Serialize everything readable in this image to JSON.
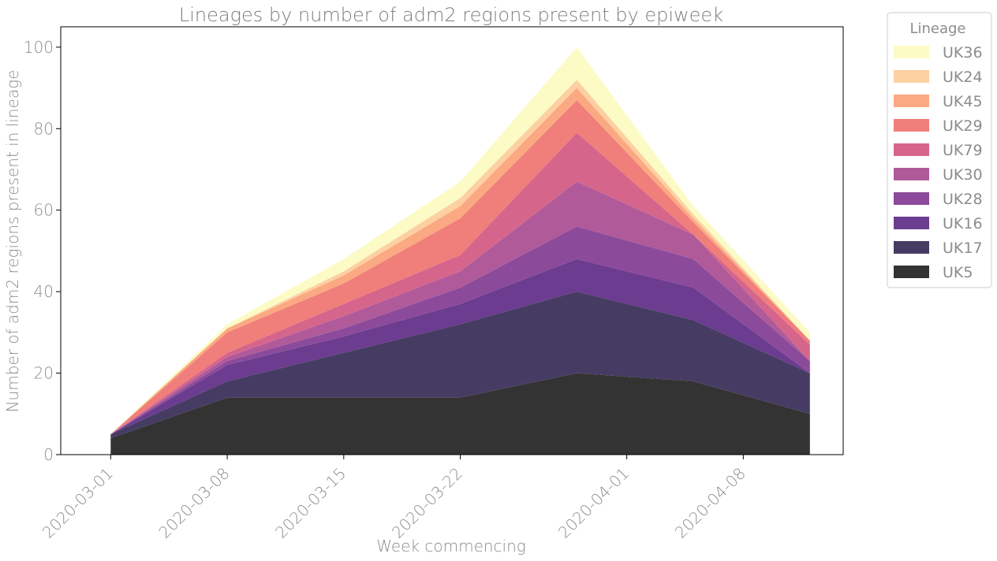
{
  "chart_data": {
    "type": "area",
    "stacked": true,
    "title": "Lineages by number of adm2 regions present by epiweek",
    "xlabel": "Week commencing",
    "ylabel": "Number of adm2 regions present in lineage",
    "x": [
      "2020-03-01",
      "2020-03-08",
      "2020-03-15",
      "2020-03-22",
      "2020-03-29",
      "2020-04-05",
      "2020-04-12"
    ],
    "xticks": [
      "2020-03-01",
      "2020-03-08",
      "2020-03-15",
      "2020-03-22",
      "2020-04-01",
      "2020-04-08"
    ],
    "xlim": [
      "2020-03-01",
      "2020-04-14"
    ],
    "ylim": [
      0,
      105
    ],
    "yticks": [
      0,
      20,
      40,
      60,
      80,
      100
    ],
    "grid": false,
    "legend": {
      "title": "Lineage",
      "placement": "outside-top-right"
    },
    "series": [
      {
        "name": "UK5",
        "color": "#333333",
        "values": [
          4,
          14,
          14,
          14,
          20,
          18,
          10
        ]
      },
      {
        "name": "UK17",
        "color": "#463c63",
        "values": [
          1,
          4,
          11,
          18,
          20,
          15,
          10
        ]
      },
      {
        "name": "UK16",
        "color": "#6b3c8f",
        "values": [
          0,
          4,
          4,
          5,
          8,
          8,
          0
        ]
      },
      {
        "name": "UK28",
        "color": "#8c4a9a",
        "values": [
          0,
          1,
          2,
          4,
          8,
          7,
          3
        ]
      },
      {
        "name": "UK30",
        "color": "#b05a9a",
        "values": [
          0,
          1,
          3,
          4,
          11,
          6,
          0
        ]
      },
      {
        "name": "UK79",
        "color": "#d6658c",
        "values": [
          0,
          1,
          3,
          4,
          12,
          0,
          4
        ]
      },
      {
        "name": "UK29",
        "color": "#f07e7a",
        "values": [
          0,
          5,
          5,
          9,
          8,
          3,
          1
        ]
      },
      {
        "name": "UK45",
        "color": "#fba982",
        "values": [
          0,
          1,
          2,
          3,
          3,
          1,
          0
        ]
      },
      {
        "name": "UK24",
        "color": "#fdd0a2",
        "values": [
          0,
          0,
          1,
          2,
          2,
          1,
          0
        ]
      },
      {
        "name": "UK36",
        "color": "#fcfbc5",
        "values": [
          0,
          1,
          3,
          4,
          8,
          2,
          2
        ]
      }
    ]
  }
}
